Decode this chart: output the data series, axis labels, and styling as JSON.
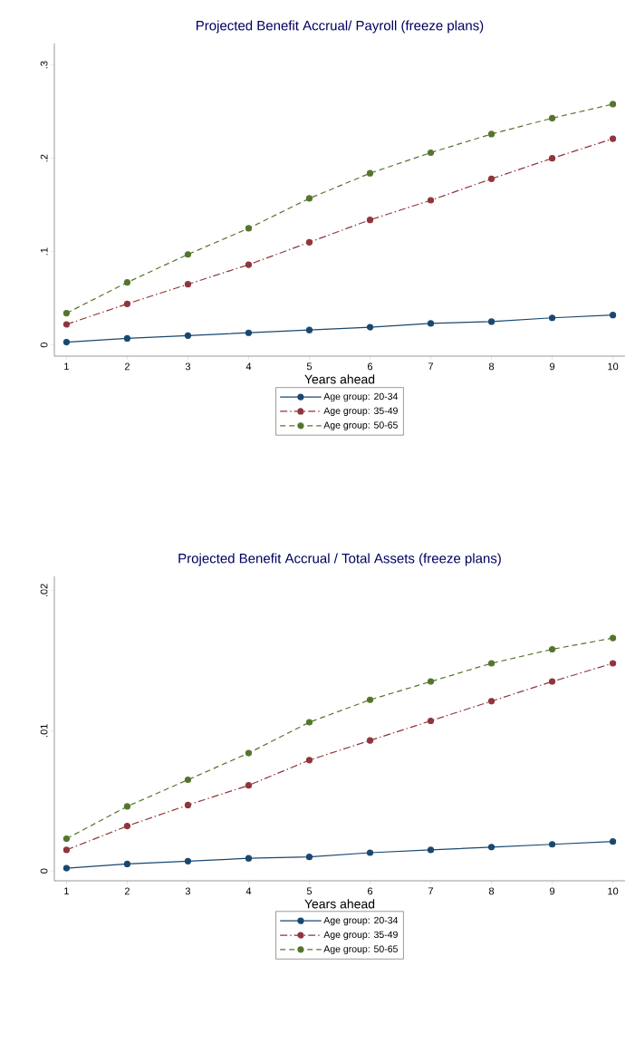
{
  "chart_data": [
    {
      "type": "line",
      "title": "Projected Benefit Accrual/ Payroll (freeze plans)",
      "xlabel": "Years ahead",
      "x": [
        1,
        2,
        3,
        4,
        5,
        6,
        7,
        8,
        9,
        10
      ],
      "xlim": [
        0.8,
        10.2
      ],
      "xticks": [
        1,
        2,
        3,
        4,
        5,
        6,
        7,
        8,
        9,
        10
      ],
      "ylim": [
        -0.012,
        0.323
      ],
      "yticks": [
        0,
        {
          "value": 0.1,
          "label": ".1"
        },
        {
          "value": 0.2,
          "label": ".2"
        },
        {
          "value": 0.3,
          "label": ".3"
        }
      ],
      "legend": "bottom",
      "marker": "circle",
      "series": [
        {
          "name": "Age group: 20-34",
          "color": "#1a476f",
          "line_style": "solid",
          "values": [
            0.003,
            0.007,
            0.01,
            0.013,
            0.016,
            0.019,
            0.023,
            0.025,
            0.029,
            0.032
          ]
        },
        {
          "name": "Age group: 35-49",
          "color": "#90353b",
          "line_style": "dashdot",
          "values": [
            0.022,
            0.044,
            0.065,
            0.086,
            0.11,
            0.134,
            0.155,
            0.178,
            0.2,
            0.221
          ]
        },
        {
          "name": "Age group: 50-65",
          "color": "#55752f",
          "line_style": "dashed",
          "values": [
            0.034,
            0.067,
            0.097,
            0.125,
            0.157,
            0.184,
            0.206,
            0.226,
            0.243,
            0.258
          ]
        }
      ]
    },
    {
      "type": "line",
      "title": "Projected Benefit Accrual / Total Assets (freeze plans)",
      "xlabel": "Years ahead",
      "x": [
        1,
        2,
        3,
        4,
        5,
        6,
        7,
        8,
        9,
        10
      ],
      "xlim": [
        0.8,
        10.2
      ],
      "xticks": [
        1,
        2,
        3,
        4,
        5,
        6,
        7,
        8,
        9,
        10
      ],
      "ylim": [
        -0.0007,
        0.021
      ],
      "yticks": [
        0,
        {
          "value": 0.01,
          "label": ".01"
        },
        {
          "value": 0.02,
          "label": ".02"
        }
      ],
      "legend": "bottom",
      "marker": "circle",
      "series": [
        {
          "name": "Age group: 20-34",
          "color": "#1a476f",
          "line_style": "solid",
          "values": [
            0.0002,
            0.0005,
            0.0007,
            0.0009,
            0.001,
            0.0013,
            0.0015,
            0.0017,
            0.0019,
            0.0021
          ]
        },
        {
          "name": "Age group: 35-49",
          "color": "#90353b",
          "line_style": "dashdot",
          "values": [
            0.0015,
            0.0032,
            0.0047,
            0.0061,
            0.0079,
            0.0093,
            0.0107,
            0.0121,
            0.0135,
            0.0148
          ]
        },
        {
          "name": "Age group: 50-65",
          "color": "#55752f",
          "line_style": "dashed",
          "values": [
            0.0023,
            0.0046,
            0.0065,
            0.0084,
            0.0106,
            0.0122,
            0.0135,
            0.0148,
            0.0158,
            0.0166
          ]
        }
      ]
    }
  ]
}
